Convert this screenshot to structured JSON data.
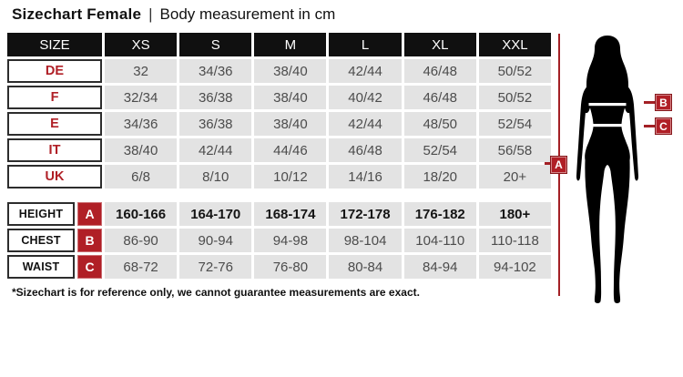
{
  "title": {
    "main": "Sizechart Female",
    "separator": "|",
    "subtitle": "Body measurement in cm"
  },
  "colors": {
    "accent_red": "#b01f26",
    "header_bg": "#101010",
    "cell_bg": "#e3e3e3",
    "cell_text": "#4c4c4c"
  },
  "table": {
    "headers": [
      "SIZE",
      "XS",
      "S",
      "M",
      "L",
      "XL",
      "XXL"
    ],
    "size_rows": [
      {
        "label": "DE",
        "values": [
          "32",
          "34/36",
          "38/40",
          "42/44",
          "46/48",
          "50/52"
        ]
      },
      {
        "label": "F",
        "values": [
          "32/34",
          "36/38",
          "38/40",
          "40/42",
          "46/48",
          "50/52"
        ]
      },
      {
        "label": "E",
        "values": [
          "34/36",
          "36/38",
          "38/40",
          "42/44",
          "48/50",
          "52/54"
        ]
      },
      {
        "label": "IT",
        "values": [
          "38/40",
          "42/44",
          "44/46",
          "46/48",
          "52/54",
          "56/58"
        ]
      },
      {
        "label": "UK",
        "values": [
          "6/8",
          "8/10",
          "10/12",
          "14/16",
          "18/20",
          "20+"
        ]
      }
    ],
    "measurement_rows": [
      {
        "label": "HEIGHT",
        "marker": "A",
        "bold": true,
        "values": [
          "160-166",
          "164-170",
          "168-174",
          "172-178",
          "176-182",
          "180+"
        ]
      },
      {
        "label": "CHEST",
        "marker": "B",
        "bold": false,
        "values": [
          "86-90",
          "90-94",
          "94-98",
          "98-104",
          "104-110",
          "110-118"
        ]
      },
      {
        "label": "WAIST",
        "marker": "C",
        "bold": false,
        "values": [
          "68-72",
          "72-76",
          "76-80",
          "80-84",
          "84-94",
          "94-102"
        ]
      }
    ]
  },
  "figure": {
    "marker_a": "A",
    "marker_b": "B",
    "marker_c": "C",
    "silhouette": "female-back-silhouette"
  },
  "footnote": "*Sizechart is for reference only, we cannot guarantee measurements are exact."
}
